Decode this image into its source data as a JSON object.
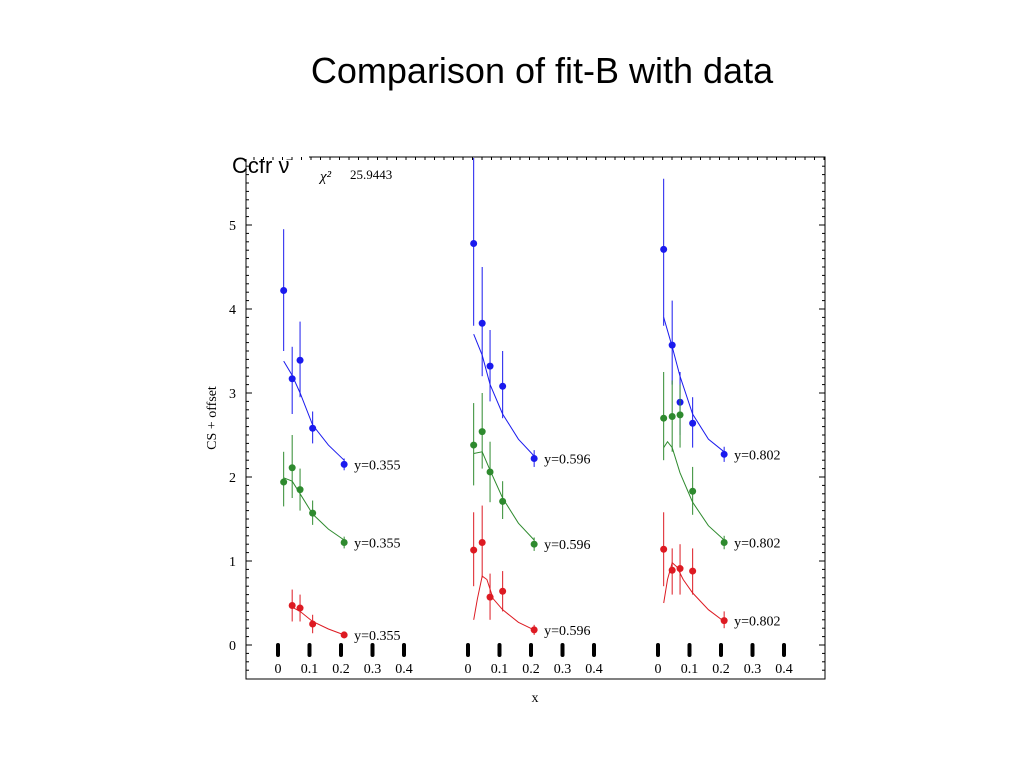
{
  "slide": {
    "title": "Comparison of fit-B with data",
    "label": "Ccfr ν̄"
  },
  "chart_data": {
    "type": "scatter",
    "xlabel": "x",
    "ylabel": "CS + offset",
    "ylim": [
      -0.3,
      5.9
    ],
    "yticks": [
      0,
      1,
      2,
      3,
      4,
      5
    ],
    "xticks": [
      "0",
      "0.1",
      "0.2",
      "0.3",
      "0.4"
    ],
    "annotation": {
      "symbol": "χ²",
      "value": "25.9443"
    },
    "colors": {
      "upper": "#1a1aee",
      "middle": "#2e8a2e",
      "lower": "#dd1a22"
    },
    "panels": [
      {
        "series": [
          {
            "group": "upper",
            "label": "y=0.355",
            "points": [
              {
                "x": 0.018,
                "y": 4.22,
                "lo": 3.5,
                "hi": 4.95
              },
              {
                "x": 0.045,
                "y": 3.17,
                "lo": 2.75,
                "hi": 3.55
              },
              {
                "x": 0.07,
                "y": 3.39,
                "lo": 2.95,
                "hi": 3.85
              },
              {
                "x": 0.11,
                "y": 2.58,
                "lo": 2.4,
                "hi": 2.78
              },
              {
                "x": 0.21,
                "y": 2.15,
                "lo": 2.08,
                "hi": 2.22
              }
            ],
            "fit": [
              [
                0.018,
                3.38
              ],
              [
                0.045,
                3.21
              ],
              [
                0.07,
                3.0
              ],
              [
                0.11,
                2.62
              ],
              [
                0.16,
                2.38
              ],
              [
                0.21,
                2.2
              ]
            ]
          },
          {
            "group": "middle",
            "label": "y=0.355",
            "points": [
              {
                "x": 0.018,
                "y": 1.94,
                "lo": 1.65,
                "hi": 2.3
              },
              {
                "x": 0.045,
                "y": 2.11,
                "lo": 1.75,
                "hi": 2.5
              },
              {
                "x": 0.07,
                "y": 1.85,
                "lo": 1.6,
                "hi": 2.1
              },
              {
                "x": 0.11,
                "y": 1.57,
                "lo": 1.43,
                "hi": 1.72
              },
              {
                "x": 0.21,
                "y": 1.22,
                "lo": 1.15,
                "hi": 1.29
              }
            ],
            "fit": [
              [
                0.018,
                1.99
              ],
              [
                0.045,
                1.95
              ],
              [
                0.07,
                1.8
              ],
              [
                0.11,
                1.56
              ],
              [
                0.16,
                1.38
              ],
              [
                0.21,
                1.25
              ]
            ]
          },
          {
            "group": "lower",
            "label": "y=0.355",
            "points": [
              {
                "x": 0.045,
                "y": 0.47,
                "lo": 0.28,
                "hi": 0.66
              },
              {
                "x": 0.07,
                "y": 0.44,
                "lo": 0.28,
                "hi": 0.6
              },
              {
                "x": 0.11,
                "y": 0.25,
                "lo": 0.14,
                "hi": 0.36
              },
              {
                "x": 0.21,
                "y": 0.12,
                "lo": 0.08,
                "hi": 0.16
              }
            ],
            "fit": [
              [
                0.045,
                0.45
              ],
              [
                0.07,
                0.4
              ],
              [
                0.11,
                0.28
              ],
              [
                0.16,
                0.19
              ],
              [
                0.21,
                0.12
              ]
            ]
          }
        ]
      },
      {
        "series": [
          {
            "group": "upper",
            "label": "y=0.596",
            "points": [
              {
                "x": 0.018,
                "y": 4.78,
                "lo": 3.8,
                "hi": 5.9
              },
              {
                "x": 0.045,
                "y": 3.83,
                "lo": 3.2,
                "hi": 4.5
              },
              {
                "x": 0.07,
                "y": 3.32,
                "lo": 2.9,
                "hi": 3.75
              },
              {
                "x": 0.11,
                "y": 3.08,
                "lo": 2.7,
                "hi": 3.5
              },
              {
                "x": 0.21,
                "y": 2.22,
                "lo": 2.12,
                "hi": 2.32
              }
            ],
            "fit": [
              [
                0.018,
                3.7
              ],
              [
                0.045,
                3.45
              ],
              [
                0.07,
                3.1
              ],
              [
                0.11,
                2.75
              ],
              [
                0.16,
                2.45
              ],
              [
                0.21,
                2.25
              ]
            ]
          },
          {
            "group": "middle",
            "label": "y=0.596",
            "points": [
              {
                "x": 0.018,
                "y": 2.38,
                "lo": 1.9,
                "hi": 2.88
              },
              {
                "x": 0.045,
                "y": 2.54,
                "lo": 2.1,
                "hi": 3.0
              },
              {
                "x": 0.07,
                "y": 2.06,
                "lo": 1.7,
                "hi": 2.42
              },
              {
                "x": 0.11,
                "y": 1.71,
                "lo": 1.5,
                "hi": 1.95
              },
              {
                "x": 0.21,
                "y": 1.2,
                "lo": 1.12,
                "hi": 1.28
              }
            ],
            "fit": [
              [
                0.018,
                2.28
              ],
              [
                0.045,
                2.3
              ],
              [
                0.07,
                2.08
              ],
              [
                0.11,
                1.75
              ],
              [
                0.16,
                1.45
              ],
              [
                0.21,
                1.25
              ]
            ]
          },
          {
            "group": "lower",
            "label": "y=0.596",
            "points": [
              {
                "x": 0.018,
                "y": 1.13,
                "lo": 0.7,
                "hi": 1.58
              },
              {
                "x": 0.045,
                "y": 1.22,
                "lo": 0.8,
                "hi": 1.66
              },
              {
                "x": 0.07,
                "y": 0.57,
                "lo": 0.3,
                "hi": 0.85
              },
              {
                "x": 0.11,
                "y": 0.64,
                "lo": 0.4,
                "hi": 0.88
              },
              {
                "x": 0.21,
                "y": 0.18,
                "lo": 0.12,
                "hi": 0.24
              }
            ],
            "fit": [
              [
                0.018,
                0.3
              ],
              [
                0.03,
                0.55
              ],
              [
                0.045,
                0.82
              ],
              [
                0.06,
                0.78
              ],
              [
                0.08,
                0.55
              ],
              [
                0.11,
                0.42
              ],
              [
                0.16,
                0.27
              ],
              [
                0.21,
                0.18
              ]
            ]
          }
        ]
      },
      {
        "series": [
          {
            "group": "upper",
            "label": "y=0.802",
            "points": [
              {
                "x": 0.018,
                "y": 4.71,
                "lo": 3.8,
                "hi": 5.55
              },
              {
                "x": 0.045,
                "y": 3.57,
                "lo": 3.1,
                "hi": 4.1
              },
              {
                "x": 0.07,
                "y": 2.89,
                "lo": 2.5,
                "hi": 3.25
              },
              {
                "x": 0.11,
                "y": 2.64,
                "lo": 2.35,
                "hi": 2.95
              },
              {
                "x": 0.21,
                "y": 2.27,
                "lo": 2.18,
                "hi": 2.36
              }
            ],
            "fit": [
              [
                0.018,
                3.9
              ],
              [
                0.045,
                3.55
              ],
              [
                0.07,
                3.2
              ],
              [
                0.11,
                2.75
              ],
              [
                0.16,
                2.45
              ],
              [
                0.21,
                2.3
              ]
            ]
          },
          {
            "group": "middle",
            "label": "y=0.802",
            "points": [
              {
                "x": 0.018,
                "y": 2.7,
                "lo": 2.2,
                "hi": 3.25
              },
              {
                "x": 0.045,
                "y": 2.72,
                "lo": 2.3,
                "hi": 3.15
              },
              {
                "x": 0.07,
                "y": 2.74,
                "lo": 2.35,
                "hi": 3.1
              },
              {
                "x": 0.11,
                "y": 1.83,
                "lo": 1.55,
                "hi": 2.12
              },
              {
                "x": 0.21,
                "y": 1.22,
                "lo": 1.14,
                "hi": 1.3
              }
            ],
            "fit": [
              [
                0.018,
                2.35
              ],
              [
                0.03,
                2.42
              ],
              [
                0.045,
                2.35
              ],
              [
                0.07,
                2.05
              ],
              [
                0.11,
                1.7
              ],
              [
                0.16,
                1.42
              ],
              [
                0.21,
                1.25
              ]
            ]
          },
          {
            "group": "lower",
            "label": "y=0.802",
            "points": [
              {
                "x": 0.018,
                "y": 1.14,
                "lo": 0.7,
                "hi": 1.58
              },
              {
                "x": 0.045,
                "y": 0.89,
                "lo": 0.6,
                "hi": 1.15
              },
              {
                "x": 0.07,
                "y": 0.91,
                "lo": 0.6,
                "hi": 1.2
              },
              {
                "x": 0.11,
                "y": 0.88,
                "lo": 0.6,
                "hi": 1.15
              },
              {
                "x": 0.21,
                "y": 0.29,
                "lo": 0.2,
                "hi": 0.4
              }
            ],
            "fit": [
              [
                0.018,
                0.5
              ],
              [
                0.03,
                0.78
              ],
              [
                0.045,
                0.98
              ],
              [
                0.06,
                0.93
              ],
              [
                0.08,
                0.78
              ],
              [
                0.11,
                0.62
              ],
              [
                0.16,
                0.42
              ],
              [
                0.21,
                0.28
              ]
            ]
          }
        ]
      }
    ]
  }
}
